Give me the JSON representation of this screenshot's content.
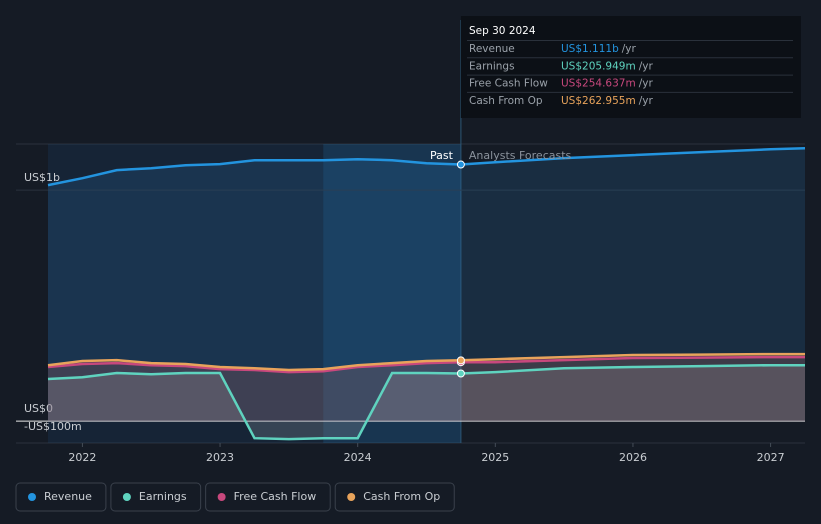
{
  "chart_data": {
    "type": "line",
    "x": [
      2021.75,
      2022.0,
      2022.25,
      2022.5,
      2022.75,
      2023.0,
      2023.25,
      2023.5,
      2023.75,
      2024.0,
      2024.25,
      2024.5,
      2024.75,
      2025.0,
      2025.5,
      2026.0,
      2026.5,
      2027.0,
      2027.25
    ],
    "series": [
      {
        "name": "Revenue",
        "color": "#2394df",
        "values": [
          1022,
          1052,
          1087,
          1095,
          1108,
          1113,
          1130,
          1130,
          1130,
          1134,
          1130,
          1117,
          1111,
          1121,
          1139,
          1152,
          1165,
          1177,
          1182
        ]
      },
      {
        "name": "Earnings",
        "color": "#5fd3bf",
        "values": [
          182,
          190,
          208,
          203,
          208,
          208,
          -74,
          -78,
          -74,
          -74,
          208,
          208,
          206,
          212,
          229,
          234,
          238,
          242,
          242
        ]
      },
      {
        "name": "Free Cash Flow",
        "color": "#c8487d",
        "values": [
          234,
          247,
          251,
          242,
          238,
          225,
          221,
          212,
          216,
          234,
          242,
          251,
          255,
          255,
          264,
          273,
          275,
          277,
          277
        ]
      },
      {
        "name": "Cash From Op",
        "color": "#e8a35b",
        "values": [
          242,
          260,
          264,
          251,
          247,
          234,
          229,
          221,
          225,
          242,
          251,
          260,
          263,
          268,
          277,
          286,
          288,
          290,
          290
        ]
      }
    ],
    "xlim": [
      2021.75,
      2027.25
    ],
    "xticks": [
      2022,
      2023,
      2024,
      2025,
      2026,
      2027
    ],
    "ylim": [
      -95,
      1200
    ],
    "yticks": [
      {
        "value": 1000,
        "label": "US$1b"
      },
      {
        "value": 0,
        "label": "US$0"
      },
      {
        "value": -100,
        "label": "-US$100m"
      }
    ],
    "forecast_start": 2024.75,
    "highlight": [
      2023.75,
      2024.75
    ],
    "past_label": "Past",
    "forecast_label": "Analysts Forecasts",
    "tooltip": {
      "date": "Sep 30 2024",
      "rows": [
        {
          "label": "Revenue",
          "value": "US$1.111b",
          "unit": "/yr"
        },
        {
          "label": "Earnings",
          "value": "US$205.949m",
          "unit": "/yr"
        },
        {
          "label": "Free Cash Flow",
          "value": "US$254.637m",
          "unit": "/yr"
        },
        {
          "label": "Cash From Op",
          "value": "US$262.955m",
          "unit": "/yr"
        }
      ]
    }
  }
}
